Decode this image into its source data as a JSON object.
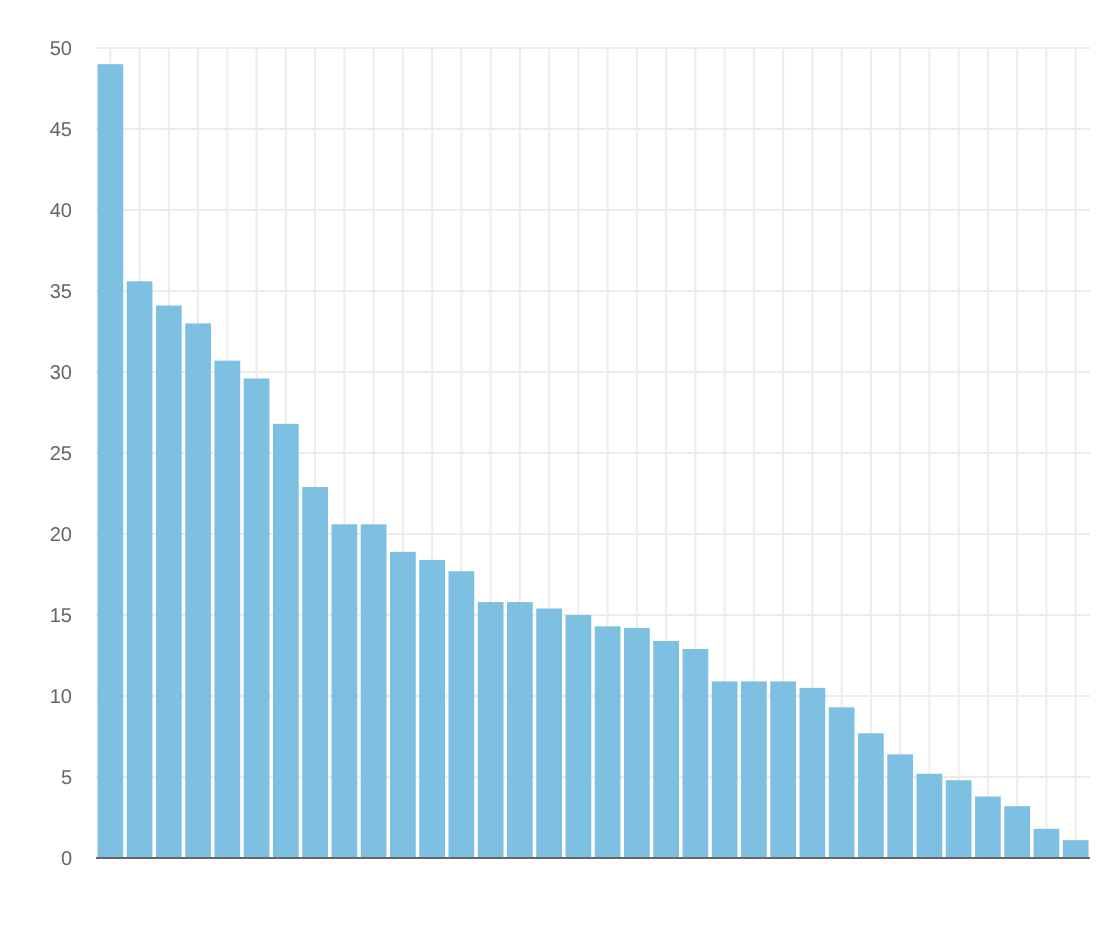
{
  "chart_data": {
    "type": "bar",
    "categories": [
      null,
      null,
      null,
      null,
      null,
      null,
      null,
      null,
      null,
      null,
      null,
      null,
      null,
      null,
      null,
      null,
      null,
      null,
      null,
      null,
      null,
      null,
      null,
      null,
      null,
      null,
      null,
      null,
      null,
      null,
      null,
      null,
      null,
      null
    ],
    "values": [
      49,
      35.6,
      34.1,
      33,
      30.7,
      29.6,
      26.8,
      22.9,
      20.6,
      20.6,
      18.9,
      18.4,
      17.7,
      15.8,
      15.8,
      15.4,
      15,
      14.3,
      14.2,
      13.4,
      12.9,
      10.9,
      10.9,
      10.9,
      10.5,
      9.3,
      7.7,
      6.4,
      5.2,
      4.8,
      3.8,
      3.2,
      1.8,
      1.1
    ],
    "color": "#7ec0e2",
    "ylim": [
      0,
      50
    ],
    "yticks": [
      0,
      5,
      10,
      15,
      20,
      25,
      30,
      35,
      40,
      45,
      50
    ],
    "grid": true
  }
}
